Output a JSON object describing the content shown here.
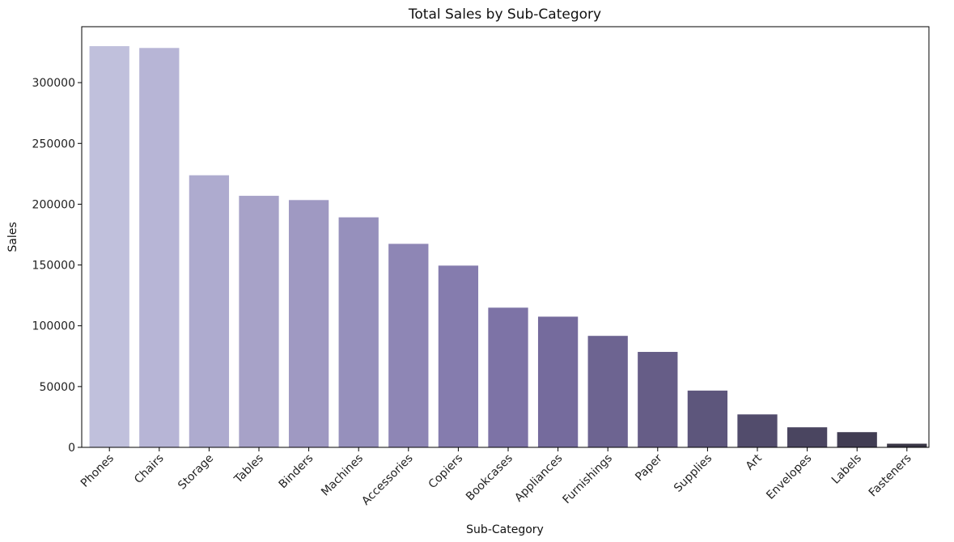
{
  "chart_data": {
    "type": "bar",
    "title": "Total Sales by Sub-Category",
    "xlabel": "Sub-Category",
    "ylabel": "Sales",
    "ylim": [
      0,
      346000
    ],
    "yticks": [
      0,
      50000,
      100000,
      150000,
      200000,
      250000,
      300000
    ],
    "ytick_labels": [
      "0",
      "50000",
      "100000",
      "150000",
      "200000",
      "250000",
      "300000"
    ],
    "grid": false,
    "categories": [
      "Phones",
      "Chairs",
      "Storage",
      "Tables",
      "Binders",
      "Machines",
      "Accessories",
      "Copiers",
      "Bookcases",
      "Appliances",
      "Furnishings",
      "Paper",
      "Supplies",
      "Art",
      "Envelopes",
      "Labels",
      "Fasteners"
    ],
    "values": [
      330000,
      328500,
      223800,
      206900,
      203400,
      189200,
      167400,
      149500,
      114900,
      107500,
      91700,
      78500,
      46700,
      27100,
      16500,
      12500,
      3000
    ],
    "colors": [
      "#c0c0dc",
      "#b7b5d6",
      "#aeabcf",
      "#a7a2c8",
      "#9f99c2",
      "#9690bc",
      "#8e86b5",
      "#857cae",
      "#7d73a6",
      "#756b9d",
      "#6d6491",
      "#665d87",
      "#5d567c",
      "#524c6c",
      "#4a4560",
      "#413d53",
      "#393645"
    ]
  }
}
